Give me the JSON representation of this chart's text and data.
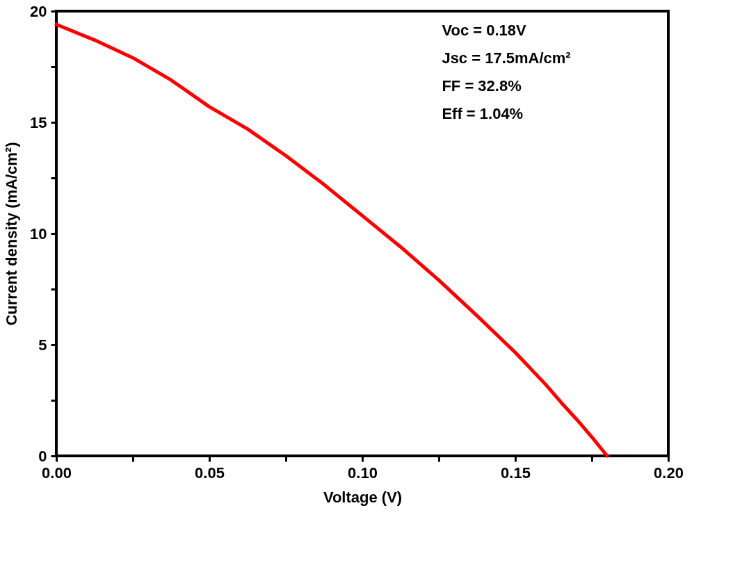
{
  "chart_data": {
    "type": "line",
    "xlabel": "Voltage (V)",
    "ylabel": "Current density (mA/cm²)",
    "x": [
      0,
      0.0125,
      0.025,
      0.0375,
      0.05,
      0.0625,
      0.075,
      0.0875,
      0.1,
      0.1125,
      0.125,
      0.1375,
      0.15,
      0.16,
      0.165,
      0.17,
      0.175,
      0.18
    ],
    "series": [
      {
        "color": "#ff0000",
        "values": [
          19.4,
          18.7,
          17.9,
          16.9,
          15.7,
          14.7,
          13.5,
          12.2,
          10.8,
          9.4,
          7.9,
          6.3,
          4.65,
          3.2,
          2.4,
          1.65,
          0.85,
          0
        ]
      }
    ],
    "xlim": [
      0,
      0.2
    ],
    "ylim": [
      0,
      20
    ],
    "xticks": [
      {
        "value": 0,
        "label": "0.00"
      },
      {
        "value": 0.025,
        "label": null
      },
      {
        "value": 0.05,
        "label": "0.05"
      },
      {
        "value": 0.075,
        "label": null
      },
      {
        "value": 0.1,
        "label": "0.10"
      },
      {
        "value": 0.125,
        "label": null
      },
      {
        "value": 0.15,
        "label": "0.15"
      },
      {
        "value": 0.175,
        "label": null
      },
      {
        "value": 0.2,
        "label": "0.20"
      }
    ],
    "yticks": [
      0,
      {
        "value": 2.5,
        "label": null
      },
      5,
      {
        "value": 7.5,
        "label": null
      },
      10,
      {
        "value": 12.5,
        "label": null
      },
      15,
      {
        "value": 17.5,
        "label": null
      },
      20
    ],
    "annotations": [
      "Voc = 0.18V",
      "Jsc = 17.5mA/cm²",
      "FF = 32.8%",
      "Eff = 1.04%"
    ],
    "grid": false,
    "marker": "none",
    "line_style": "solid"
  }
}
